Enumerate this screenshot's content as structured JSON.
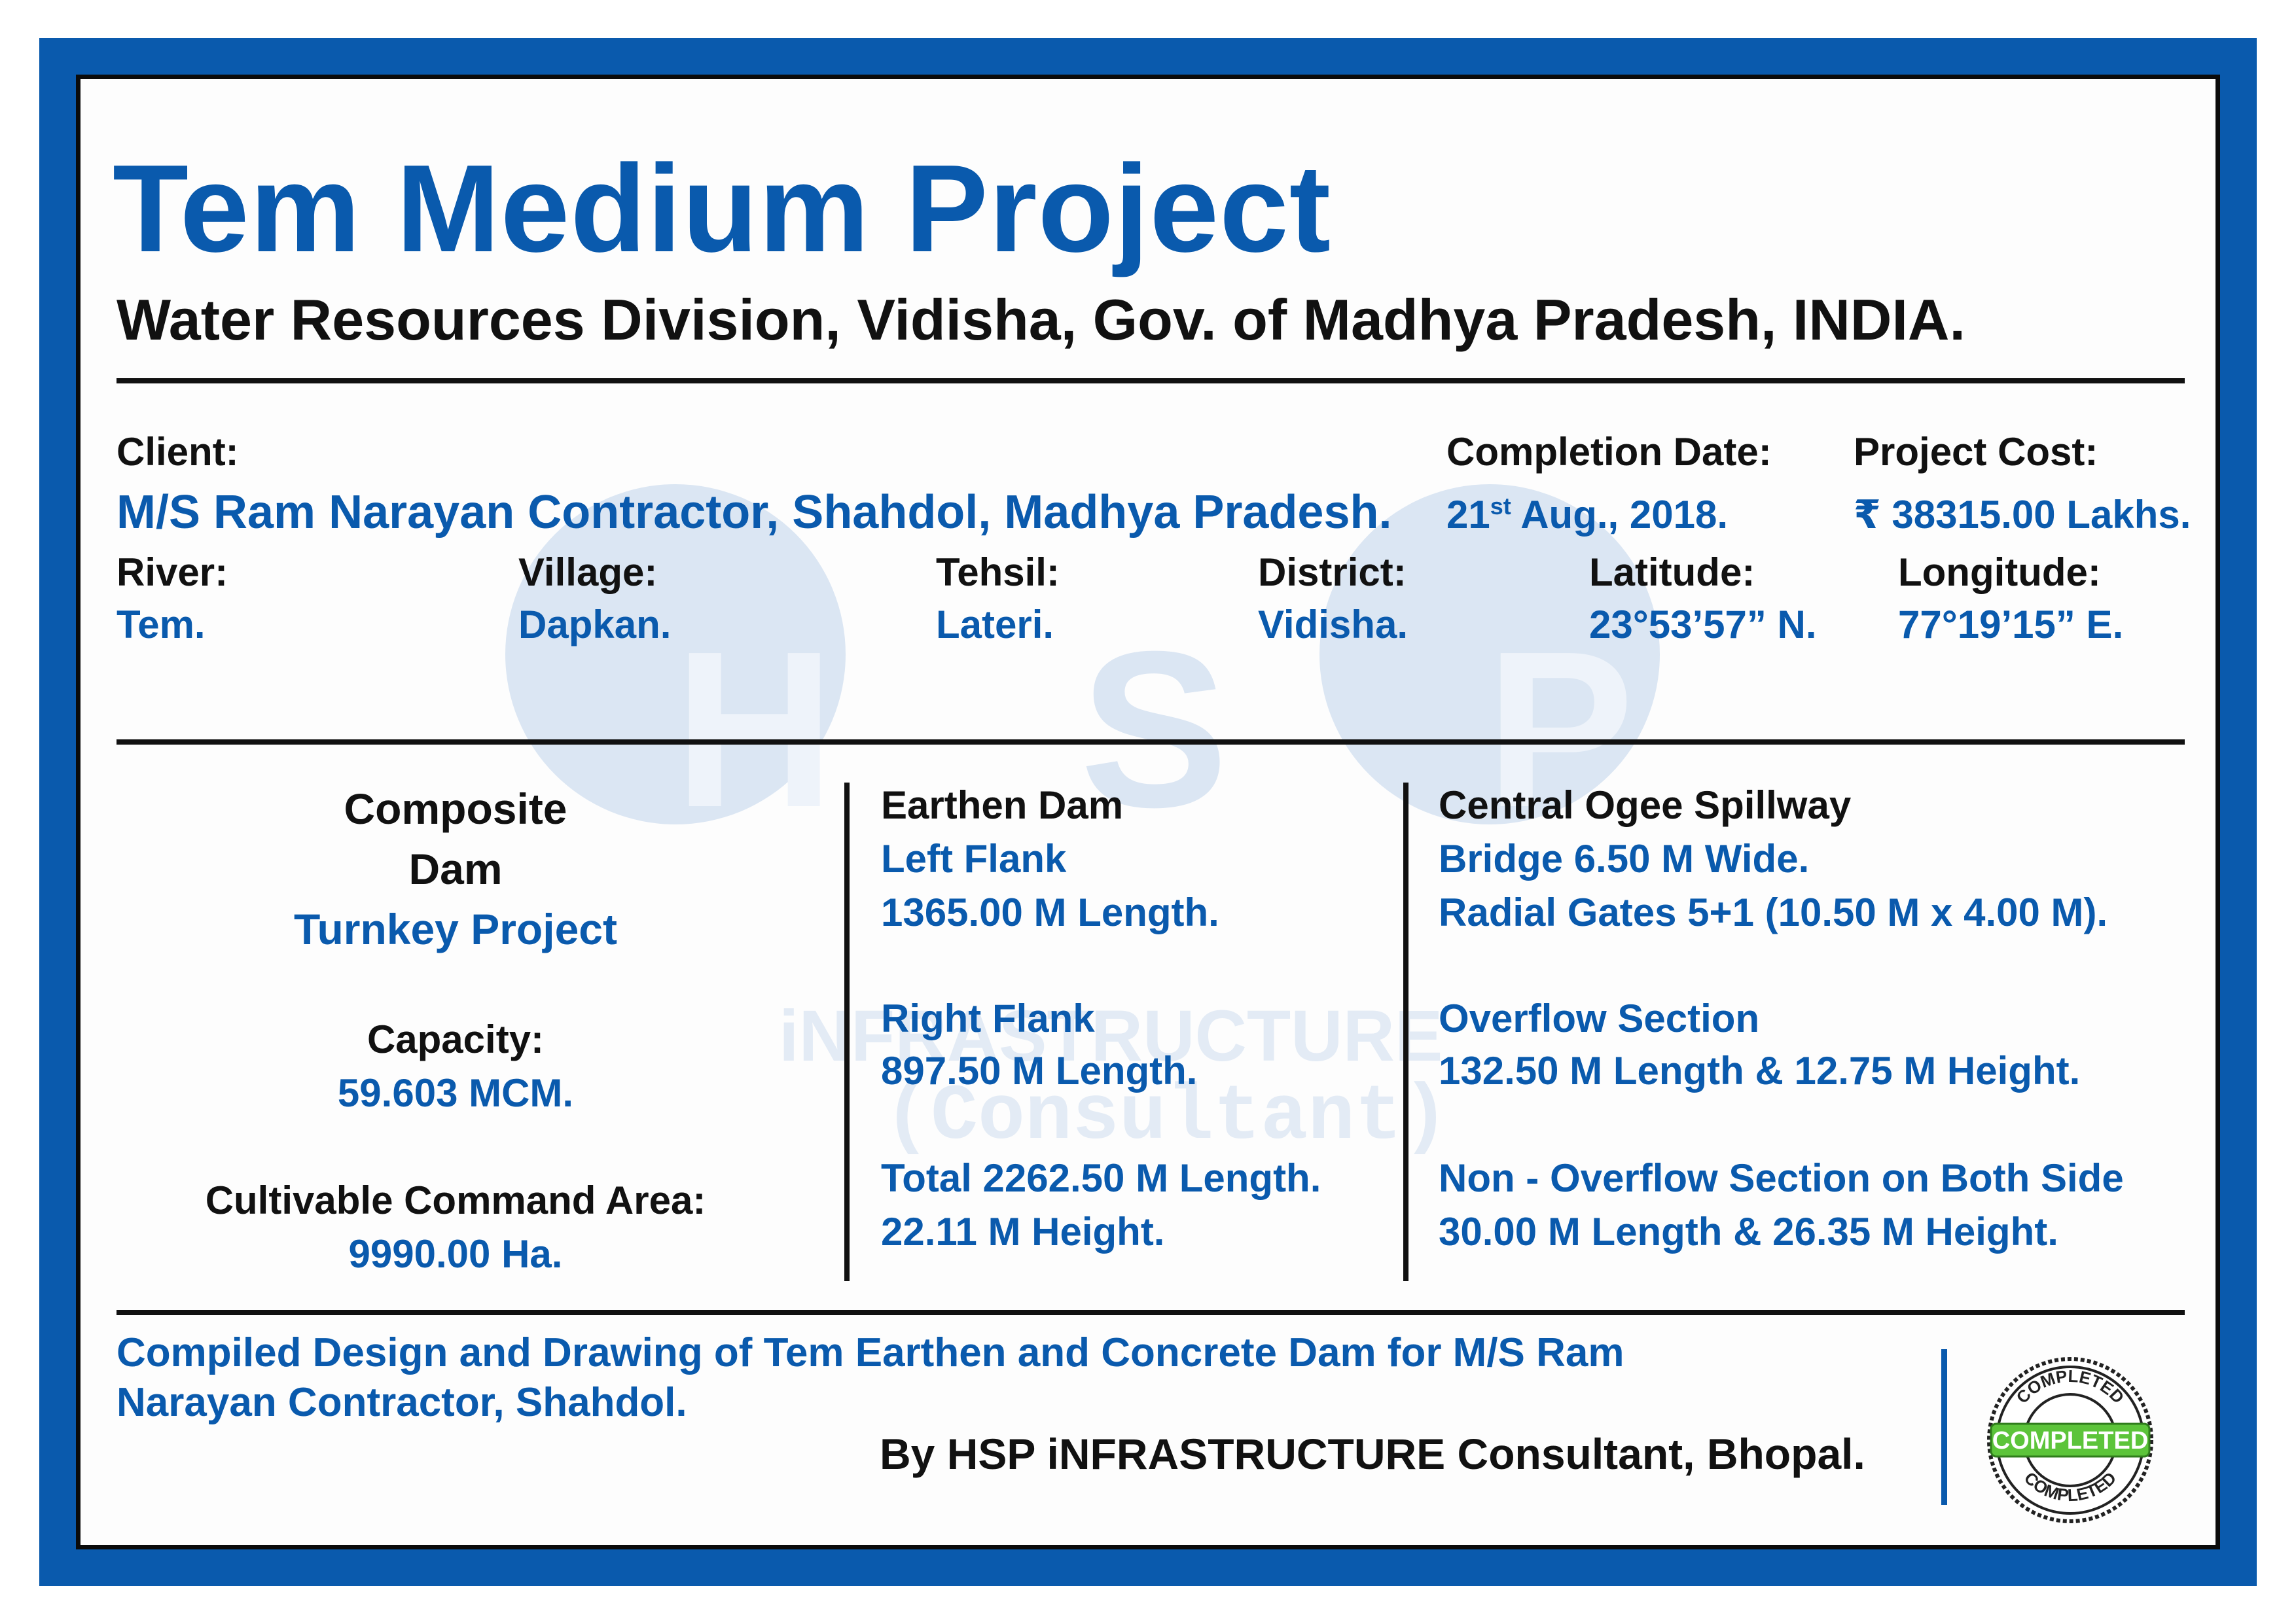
{
  "header": {
    "title": "Tem Medium Project",
    "subtitle": "Water Resources Division, Vidisha, Gov. of Madhya Pradesh, INDIA."
  },
  "info": {
    "client_label": "Client:",
    "client_value": "M/S Ram Narayan Contractor, Shahdol, Madhya Pradesh.",
    "completion_label": "Completion Date:",
    "completion_day": "21",
    "completion_suffix": "st",
    "completion_rest": " Aug., 2018.",
    "cost_label": "Project Cost:",
    "cost_value": "₹ 38315.00 Lakhs.",
    "river_label": "River:",
    "river_value": "Tem.",
    "village_label": "Village:",
    "village_value": "Dapkan.",
    "tehsil_label": "Tehsil:",
    "tehsil_value": "Lateri.",
    "district_label": "District:",
    "district_value": "Vidisha.",
    "latitude_label": "Latitude:",
    "latitude_value": "23°53’57” N.",
    "longitude_label": "Longitude:",
    "longitude_value": "77°19’15” E."
  },
  "summary": {
    "type_line1": "Composite",
    "type_line2": "Dam",
    "project_type": "Turnkey Project",
    "capacity_label": "Capacity:",
    "capacity_value": "59.603 MCM.",
    "cca_label": "Cultivable Command Area:",
    "cca_value": "9990.00 Ha."
  },
  "earthen": {
    "heading": "Earthen Dam",
    "left_label": "Left Flank",
    "left_value": "1365.00 M Length.",
    "right_label": "Right Flank",
    "right_value": "897.50 M Length.",
    "total_value": "Total 2262.50 M Length.",
    "height_value": "22.11 M Height."
  },
  "spillway": {
    "heading": "Central Ogee Spillway",
    "bridge": "Bridge 6.50 M Wide.",
    "gates": "Radial Gates 5+1 (10.50 M x 4.00 M).",
    "overflow_label": "Overflow Section",
    "overflow_value": "132.50 M Length & 12.75 M Height.",
    "non_overflow_label": "Non - Overflow Section on Both Side",
    "non_overflow_value": "30.00 M Length & 26.35 M Height."
  },
  "watermark": {
    "letters": [
      "H",
      "S",
      "P"
    ],
    "line1": "iNFRASTRUCTURE",
    "line2": "(Consultant)"
  },
  "footer": {
    "line1": "Compiled Design and Drawing of Tem Earthen and Concrete Dam for M/S Ram",
    "line2": "Narayan Contractor, Shahdol.",
    "by": "By HSP iNFRASTRUCTURE Consultant, Bhopal."
  },
  "stamp": {
    "top_text": "COMPLETED",
    "center_text": "COMPLETED",
    "bottom_text": "COMPLETED"
  },
  "colors": {
    "brand_blue": "#0a5aad",
    "stamp_green": "#5cc43a"
  }
}
